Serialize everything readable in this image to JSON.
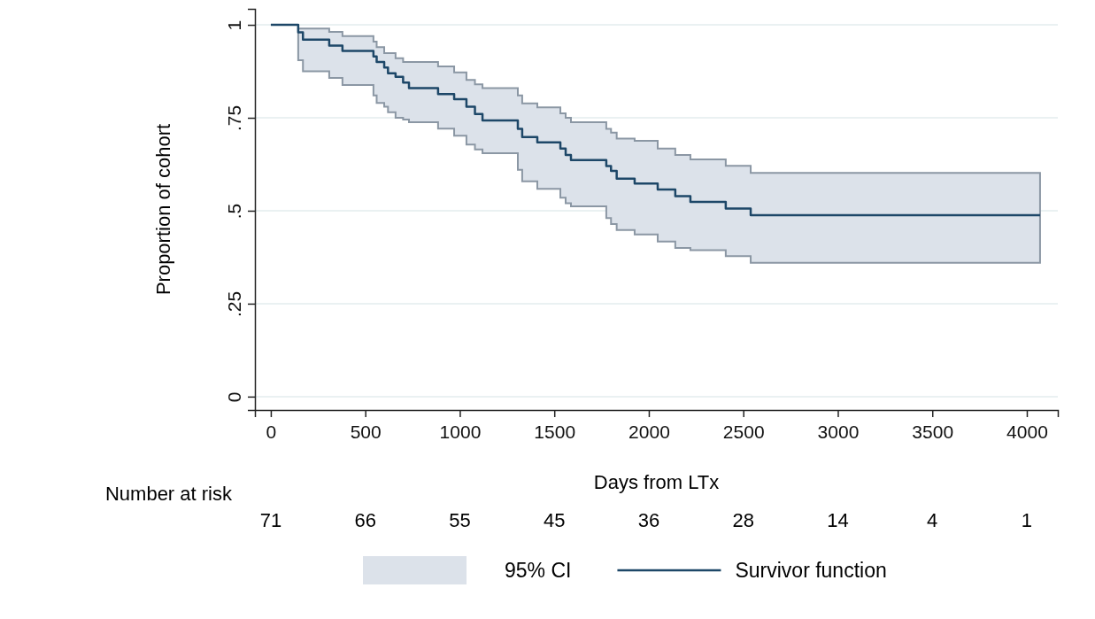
{
  "chart_data": {
    "type": "step",
    "xlabel": "Days from LTx",
    "ylabel": "Proportion of cohort",
    "x": [
      0,
      145,
      170,
      309,
      379,
      543,
      560,
      600,
      620,
      660,
      700,
      731,
      885,
      970,
      1035,
      1080,
      1120,
      1307,
      1330,
      1410,
      1532,
      1560,
      1588,
      1775,
      1800,
      1830,
      1925,
      2047,
      2140,
      2220,
      2407,
      2539,
      4070
    ],
    "series": [
      {
        "name": "Survivor function",
        "color": "#1d4768",
        "values": [
          1,
          0.98,
          0.96,
          0.944,
          0.93,
          0.915,
          0.9,
          0.885,
          0.87,
          0.86,
          0.845,
          0.83,
          0.814,
          0.8,
          0.78,
          0.76,
          0.743,
          0.72,
          0.698,
          0.684,
          0.667,
          0.65,
          0.636,
          0.62,
          0.607,
          0.586,
          0.573,
          0.557,
          0.539,
          0.524,
          0.506,
          0.488,
          0.488
        ],
        "upper": [
          null,
          0.99,
          0.99,
          0.981,
          0.97,
          0.955,
          0.94,
          0.924,
          0.924,
          0.91,
          0.9,
          0.9,
          0.888,
          0.872,
          0.852,
          0.84,
          0.83,
          0.81,
          0.789,
          0.778,
          0.762,
          0.75,
          0.738,
          0.72,
          0.71,
          0.694,
          0.688,
          0.667,
          0.65,
          0.638,
          0.621,
          0.602,
          0.602
        ],
        "lower": [
          null,
          0.905,
          0.875,
          0.857,
          0.838,
          0.81,
          0.79,
          0.78,
          0.765,
          0.75,
          0.745,
          0.738,
          0.721,
          0.702,
          0.678,
          0.665,
          0.655,
          0.61,
          0.579,
          0.559,
          0.535,
          0.52,
          0.512,
          0.48,
          0.464,
          0.448,
          0.436,
          0.417,
          0.4,
          0.394,
          0.378,
          0.36,
          0.36
        ]
      }
    ],
    "xlim": [
      -84,
      4164
    ],
    "ylim": [
      -0.036,
      1.043
    ],
    "xticks": [
      0,
      500,
      1000,
      1500,
      2000,
      2500,
      3000,
      3500,
      4000
    ],
    "yticks": [
      0,
      {
        "value": 0.25,
        "label": ".25"
      },
      {
        "value": 0.5,
        "label": ".5"
      },
      {
        "value": 0.75,
        "label": ".75"
      },
      1
    ],
    "grid": "y",
    "legend": "bottom",
    "line_style": "solid",
    "marker": "none",
    "annotations": [
      "Number at risk",
      "71",
      "66",
      "55",
      "45",
      "36",
      "28",
      "14",
      "4",
      "1",
      "95% CI"
    ]
  }
}
